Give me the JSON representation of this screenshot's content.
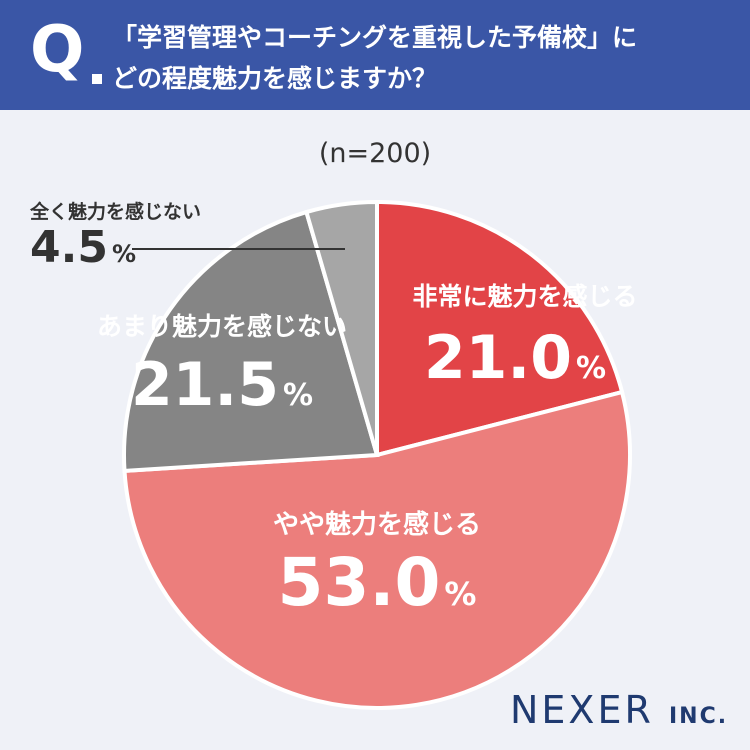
{
  "header": {
    "q_mark": "Q",
    "line1": "「学習管理やコーチングを重視した予備校」に",
    "line2": "どの程度魅力を感じますか？"
  },
  "sample_label": "(n=200)",
  "brand": {
    "name": "NEXER",
    "suffix": "INC."
  },
  "colors": {
    "header_bg": "#3a56a6",
    "background": "#eff1f7"
  },
  "chart_data": {
    "type": "pie",
    "unit": "%",
    "slices": [
      {
        "label": "非常に魅力を感じる",
        "value": 21.0,
        "value_text": "21.0",
        "color": "#e24447"
      },
      {
        "label": "やや魅力を感じる",
        "value": 53.0,
        "value_text": "53.0",
        "color": "#ec7e7c"
      },
      {
        "label": "あまり魅力を感じない",
        "value": 21.5,
        "value_text": "21.5",
        "color": "#858585"
      },
      {
        "label": "全く魅力を感じない",
        "value": 4.5,
        "value_text": "4.5",
        "color": "#a6a6a6"
      }
    ]
  }
}
